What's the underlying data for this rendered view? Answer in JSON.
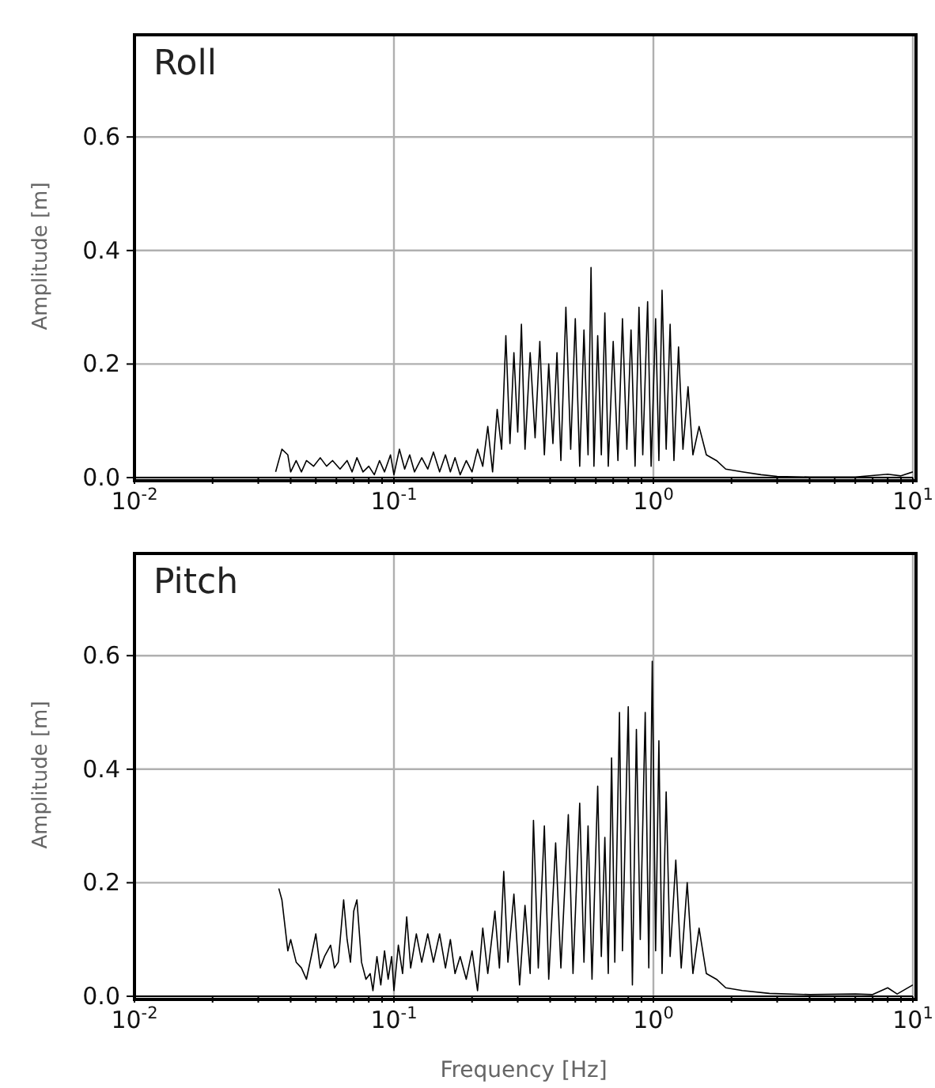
{
  "chart_data": [
    {
      "type": "line",
      "title": "Roll",
      "ylabel": "Amplitude [m]",
      "log": "x",
      "grid": true,
      "marker": "none",
      "line_style": "solid",
      "xlim": [
        0.01,
        10
      ],
      "ylim": [
        0,
        0.78
      ],
      "xticks": [
        {
          "value": 0.01,
          "label": "10$^{-2}$"
        },
        {
          "value": 0.02,
          "label": null
        },
        {
          "value": 0.03,
          "label": null
        },
        {
          "value": 0.04,
          "label": null
        },
        {
          "value": 0.05,
          "label": null
        },
        {
          "value": 0.06,
          "label": null
        },
        {
          "value": 0.07,
          "label": null
        },
        {
          "value": 0.08,
          "label": null
        },
        {
          "value": 0.09,
          "label": null
        },
        {
          "value": 0.1,
          "label": "10$^{-1}$"
        },
        {
          "value": 0.2,
          "label": null
        },
        {
          "value": 0.3,
          "label": null
        },
        {
          "value": 0.4,
          "label": null
        },
        {
          "value": 0.5,
          "label": null
        },
        {
          "value": 0.6,
          "label": null
        },
        {
          "value": 0.7,
          "label": null
        },
        {
          "value": 0.8,
          "label": null
        },
        {
          "value": 0.9,
          "label": null
        },
        {
          "value": 1,
          "label": "10$^{0}$"
        },
        {
          "value": 2,
          "label": null
        },
        {
          "value": 3,
          "label": null
        },
        {
          "value": 4,
          "label": null
        },
        {
          "value": 5,
          "label": null
        },
        {
          "value": 6,
          "label": null
        },
        {
          "value": 7,
          "label": null
        },
        {
          "value": 8,
          "label": null
        },
        {
          "value": 9,
          "label": null
        },
        {
          "value": 10,
          "label": "10$^{1}$"
        }
      ],
      "yticks": [
        {
          "value": 0,
          "label": "0.0"
        },
        {
          "value": 0.2,
          "label": "0.2"
        },
        {
          "value": 0.4,
          "label": "0.4"
        },
        {
          "value": 0.6,
          "label": "0.6"
        }
      ],
      "series": [
        {
          "color": "#000000",
          "x": [
            0.035,
            0.037,
            0.039,
            0.04,
            0.042,
            0.044,
            0.046,
            0.049,
            0.052,
            0.055,
            0.058,
            0.062,
            0.066,
            0.069,
            0.072,
            0.076,
            0.08,
            0.084,
            0.088,
            0.092,
            0.097,
            0.1,
            0.105,
            0.11,
            0.115,
            0.12,
            0.128,
            0.135,
            0.142,
            0.15,
            0.158,
            0.165,
            0.172,
            0.18,
            0.19,
            0.2,
            0.21,
            0.22,
            0.23,
            0.24,
            0.25,
            0.26,
            0.27,
            0.28,
            0.29,
            0.3,
            0.31,
            0.32,
            0.335,
            0.35,
            0.365,
            0.38,
            0.395,
            0.41,
            0.425,
            0.44,
            0.46,
            0.48,
            0.5,
            0.52,
            0.54,
            0.56,
            0.575,
            0.59,
            0.61,
            0.63,
            0.65,
            0.67,
            0.7,
            0.73,
            0.76,
            0.79,
            0.82,
            0.85,
            0.88,
            0.91,
            0.95,
            0.98,
            1.02,
            1.05,
            1.08,
            1.12,
            1.16,
            1.2,
            1.25,
            1.3,
            1.36,
            1.42,
            1.5,
            1.6,
            1.75,
            1.9,
            2.2,
            2.6,
            3,
            4,
            6,
            8,
            9,
            10
          ],
          "values": [
            0.01,
            0.05,
            0.04,
            0.01,
            0.03,
            0.01,
            0.03,
            0.02,
            0.035,
            0.02,
            0.03,
            0.015,
            0.03,
            0.01,
            0.035,
            0.01,
            0.02,
            0.005,
            0.03,
            0.01,
            0.04,
            0.005,
            0.05,
            0.015,
            0.04,
            0.01,
            0.035,
            0.015,
            0.045,
            0.01,
            0.04,
            0.01,
            0.035,
            0.005,
            0.03,
            0.01,
            0.05,
            0.02,
            0.09,
            0.01,
            0.12,
            0.05,
            0.25,
            0.06,
            0.22,
            0.08,
            0.27,
            0.05,
            0.22,
            0.07,
            0.24,
            0.04,
            0.2,
            0.06,
            0.22,
            0.03,
            0.3,
            0.05,
            0.28,
            0.02,
            0.26,
            0.04,
            0.37,
            0.02,
            0.25,
            0.04,
            0.29,
            0.02,
            0.24,
            0.03,
            0.28,
            0.05,
            0.26,
            0.02,
            0.3,
            0.04,
            0.31,
            0.02,
            0.28,
            0.03,
            0.33,
            0.05,
            0.27,
            0.03,
            0.23,
            0.05,
            0.16,
            0.04,
            0.09,
            0.04,
            0.03,
            0.015,
            0.01,
            0.005,
            0.002,
            0.001,
            0.001,
            0.006,
            0.003,
            0.01
          ]
        }
      ]
    },
    {
      "type": "line",
      "title": "Pitch",
      "xlabel": "Frequency [Hz]",
      "ylabel": "Amplitude [m]",
      "log": "x",
      "grid": true,
      "marker": "none",
      "line_style": "solid",
      "xlim": [
        0.01,
        10
      ],
      "ylim": [
        0,
        0.78
      ],
      "xticks": [
        {
          "value": 0.01,
          "label": "10$^{-2}$"
        },
        {
          "value": 0.02,
          "label": null
        },
        {
          "value": 0.03,
          "label": null
        },
        {
          "value": 0.04,
          "label": null
        },
        {
          "value": 0.05,
          "label": null
        },
        {
          "value": 0.06,
          "label": null
        },
        {
          "value": 0.07,
          "label": null
        },
        {
          "value": 0.08,
          "label": null
        },
        {
          "value": 0.09,
          "label": null
        },
        {
          "value": 0.1,
          "label": "10$^{-1}$"
        },
        {
          "value": 0.2,
          "label": null
        },
        {
          "value": 0.3,
          "label": null
        },
        {
          "value": 0.4,
          "label": null
        },
        {
          "value": 0.5,
          "label": null
        },
        {
          "value": 0.6,
          "label": null
        },
        {
          "value": 0.7,
          "label": null
        },
        {
          "value": 0.8,
          "label": null
        },
        {
          "value": 0.9,
          "label": null
        },
        {
          "value": 1,
          "label": "10$^{0}$"
        },
        {
          "value": 2,
          "label": null
        },
        {
          "value": 3,
          "label": null
        },
        {
          "value": 4,
          "label": null
        },
        {
          "value": 5,
          "label": null
        },
        {
          "value": 6,
          "label": null
        },
        {
          "value": 7,
          "label": null
        },
        {
          "value": 8,
          "label": null
        },
        {
          "value": 9,
          "label": null
        },
        {
          "value": 10,
          "label": "10$^{1}$"
        }
      ],
      "yticks": [
        {
          "value": 0,
          "label": "0.0"
        },
        {
          "value": 0.2,
          "label": "0.2"
        },
        {
          "value": 0.4,
          "label": "0.4"
        },
        {
          "value": 0.6,
          "label": "0.6"
        }
      ],
      "series": [
        {
          "color": "#000000",
          "x": [
            0.036,
            0.037,
            0.039,
            0.04,
            0.042,
            0.044,
            0.046,
            0.048,
            0.05,
            0.052,
            0.054,
            0.057,
            0.059,
            0.061,
            0.064,
            0.066,
            0.068,
            0.07,
            0.072,
            0.075,
            0.078,
            0.081,
            0.083,
            0.086,
            0.089,
            0.092,
            0.095,
            0.098,
            0.1,
            0.104,
            0.108,
            0.112,
            0.116,
            0.122,
            0.128,
            0.135,
            0.142,
            0.15,
            0.158,
            0.165,
            0.172,
            0.18,
            0.19,
            0.2,
            0.21,
            0.22,
            0.23,
            0.245,
            0.255,
            0.265,
            0.275,
            0.29,
            0.305,
            0.32,
            0.335,
            0.345,
            0.36,
            0.38,
            0.395,
            0.42,
            0.44,
            0.47,
            0.49,
            0.52,
            0.54,
            0.56,
            0.58,
            0.61,
            0.63,
            0.65,
            0.67,
            0.69,
            0.71,
            0.74,
            0.76,
            0.8,
            0.83,
            0.86,
            0.89,
            0.93,
            0.96,
            0.99,
            1.02,
            1.05,
            1.08,
            1.12,
            1.16,
            1.22,
            1.28,
            1.35,
            1.42,
            1.5,
            1.6,
            1.75,
            1.9,
            2.2,
            2.8,
            4,
            6,
            7,
            8,
            8.7,
            10
          ],
          "values": [
            0.19,
            0.17,
            0.08,
            0.1,
            0.06,
            0.05,
            0.03,
            0.07,
            0.11,
            0.05,
            0.07,
            0.09,
            0.05,
            0.06,
            0.17,
            0.1,
            0.06,
            0.15,
            0.17,
            0.06,
            0.03,
            0.04,
            0.01,
            0.07,
            0.02,
            0.08,
            0.03,
            0.07,
            0.01,
            0.09,
            0.04,
            0.14,
            0.05,
            0.11,
            0.06,
            0.11,
            0.06,
            0.11,
            0.05,
            0.1,
            0.04,
            0.07,
            0.03,
            0.08,
            0.01,
            0.12,
            0.04,
            0.15,
            0.05,
            0.22,
            0.06,
            0.18,
            0.02,
            0.16,
            0.04,
            0.31,
            0.05,
            0.3,
            0.03,
            0.27,
            0.05,
            0.32,
            0.04,
            0.34,
            0.06,
            0.3,
            0.03,
            0.37,
            0.07,
            0.28,
            0.04,
            0.42,
            0.06,
            0.5,
            0.08,
            0.51,
            0.02,
            0.47,
            0.1,
            0.5,
            0.05,
            0.59,
            0.08,
            0.45,
            0.04,
            0.36,
            0.07,
            0.24,
            0.05,
            0.2,
            0.04,
            0.12,
            0.04,
            0.03,
            0.015,
            0.01,
            0.005,
            0.003,
            0.004,
            0.003,
            0.015,
            0.004,
            0.02
          ]
        }
      ]
    }
  ]
}
